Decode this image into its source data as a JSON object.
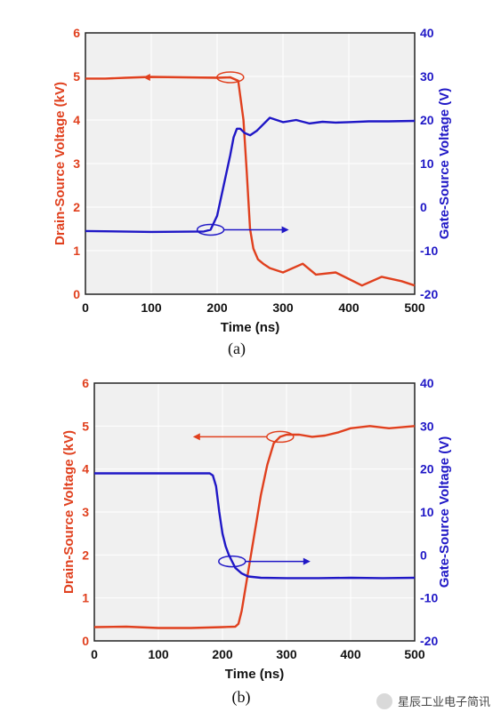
{
  "colors": {
    "drain": "#e0401e",
    "gate": "#1f17c6",
    "plot_bg": "#f0f0f0",
    "grid": "#ffffff"
  },
  "chart_data": [
    {
      "type": "line",
      "caption": "(a)",
      "xlabel": "Time (ns)",
      "ylabel_left": "Drain-Source Voltage (kV)",
      "ylabel_right": "Gate-Source Voltage (V)",
      "xlim": [
        0,
        500
      ],
      "ylim_left": [
        0,
        6
      ],
      "ylim_right": [
        -20,
        40
      ],
      "xticks": [
        0,
        100,
        200,
        300,
        400,
        500
      ],
      "yticks_left": [
        0,
        1,
        2,
        3,
        4,
        5,
        6
      ],
      "yticks_right": [
        -20,
        -10,
        0,
        10,
        20,
        30,
        40
      ],
      "grid": true,
      "series": [
        {
          "axis": "left",
          "x": [
            0,
            30,
            60,
            100,
            150,
            200,
            220,
            232,
            240,
            245,
            250,
            255,
            262,
            270,
            280,
            300,
            330,
            350,
            380,
            420,
            450,
            480,
            500
          ],
          "y": [
            4.95,
            4.95,
            4.97,
            4.99,
            4.98,
            4.97,
            4.98,
            4.9,
            4.0,
            2.8,
            1.5,
            1.05,
            0.8,
            0.7,
            0.6,
            0.5,
            0.7,
            0.45,
            0.5,
            0.2,
            0.4,
            0.3,
            0.2
          ]
        },
        {
          "axis": "right",
          "x": [
            0,
            100,
            180,
            190,
            200,
            210,
            220,
            225,
            230,
            235,
            242,
            250,
            260,
            280,
            300,
            320,
            340,
            360,
            380,
            400,
            430,
            460,
            500
          ],
          "y": [
            -5.5,
            -5.7,
            -5.6,
            -5.2,
            -2,
            5,
            12,
            16,
            18,
            18,
            17,
            16.5,
            17.5,
            20.5,
            19.5,
            20,
            19.2,
            19.6,
            19.4,
            19.5,
            19.7,
            19.7,
            19.8
          ]
        }
      ]
    },
    {
      "type": "line",
      "caption": "(b)",
      "xlabel": "Time (ns)",
      "ylabel_left": "Drain-Source Voltage (kV)",
      "ylabel_right": "Gate-Source Voltage (V)",
      "xlim": [
        0,
        500
      ],
      "ylim_left": [
        0,
        6
      ],
      "ylim_right": [
        -20,
        40
      ],
      "xticks": [
        0,
        100,
        200,
        300,
        400,
        500
      ],
      "yticks_left": [
        0,
        1,
        2,
        3,
        4,
        5,
        6
      ],
      "yticks_right": [
        -20,
        -10,
        0,
        10,
        20,
        30,
        40
      ],
      "grid": true,
      "series": [
        {
          "axis": "left",
          "x": [
            0,
            50,
            100,
            150,
            200,
            220,
            225,
            230,
            240,
            250,
            260,
            270,
            280,
            290,
            300,
            320,
            340,
            360,
            380,
            400,
            430,
            460,
            500
          ],
          "y": [
            0.32,
            0.33,
            0.3,
            0.3,
            0.32,
            0.33,
            0.4,
            0.7,
            1.6,
            2.5,
            3.4,
            4.1,
            4.6,
            4.75,
            4.8,
            4.8,
            4.75,
            4.78,
            4.85,
            4.95,
            5.0,
            4.95,
            5.0
          ]
        },
        {
          "axis": "right",
          "x": [
            0,
            100,
            170,
            180,
            185,
            190,
            195,
            200,
            205,
            210,
            215,
            220,
            230,
            240,
            260,
            300,
            350,
            400,
            450,
            500
          ],
          "y": [
            19,
            19,
            19,
            19,
            18.5,
            16,
            10,
            5,
            2,
            0,
            -1.5,
            -3,
            -4.3,
            -5,
            -5.3,
            -5.4,
            -5.4,
            -5.3,
            -5.4,
            -5.3
          ]
        }
      ]
    }
  ],
  "watermark": {
    "text": "星辰工业电子简讯",
    "icon": "wechat-icon"
  }
}
